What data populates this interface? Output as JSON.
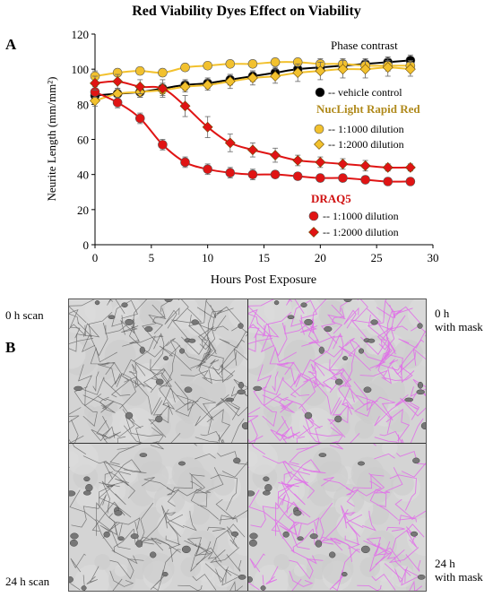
{
  "figure": {
    "title": "Red Viability Dyes Effect on Viability",
    "panel_a_label": "A",
    "panel_b_label": "B"
  },
  "chart_data": {
    "type": "line",
    "xlabel": "Hours Post Exposure",
    "ylabel": "Neurite Length (mm/mm²)",
    "xlim": [
      0,
      30
    ],
    "ylim": [
      0,
      120
    ],
    "xticks": [
      0,
      5,
      10,
      15,
      20,
      25,
      30
    ],
    "yticks": [
      0,
      20,
      40,
      60,
      80,
      100,
      120
    ],
    "grid": false,
    "x": [
      0,
      2,
      4,
      6,
      8,
      10,
      12,
      14,
      16,
      18,
      20,
      22,
      24,
      26,
      28
    ],
    "legend": {
      "phase_title": "Phase contrast",
      "nuclight_title": "NucLight Rapid Red",
      "draq5_title": "DRAQ5",
      "vehicle_label": "-- vehicle control",
      "dil1000_label": "-- 1:1000 dilution",
      "dil2000_label": "-- 1:2000 dilution"
    },
    "series": [
      {
        "name": "vehicle control",
        "group": "Phase contrast",
        "color": "#000000",
        "marker": "circle",
        "values": [
          85,
          86,
          87,
          89,
          91,
          92,
          94,
          96,
          98,
          100,
          101,
          102,
          103,
          104,
          105
        ],
        "errors": [
          3,
          3,
          3,
          3,
          3,
          3,
          3,
          3,
          3,
          3,
          3,
          3,
          3,
          3,
          3
        ]
      },
      {
        "name": "1:1000 dilution",
        "group": "NucLight Rapid Red",
        "color": "#f2c12e",
        "marker": "circle",
        "values": [
          96,
          98,
          99,
          98,
          101,
          102,
          103,
          103,
          104,
          104,
          103,
          103,
          102,
          102,
          102
        ],
        "errors": [
          3,
          2,
          2,
          2,
          2,
          2,
          2,
          2,
          2,
          2,
          3,
          3,
          3,
          3,
          3
        ]
      },
      {
        "name": "1:2000 dilution",
        "group": "NucLight Rapid Red",
        "color": "#f2c12e",
        "marker": "diamond",
        "values": [
          82,
          86,
          87,
          88,
          90,
          91,
          93,
          95,
          96,
          98,
          99,
          100,
          100,
          101,
          100
        ],
        "errors": [
          3,
          3,
          3,
          3,
          3,
          3,
          4,
          4,
          4,
          5,
          5,
          5,
          5,
          5,
          4
        ]
      },
      {
        "name": "1:1000 dilution",
        "group": "DRAQ5",
        "color": "#e01414",
        "marker": "circle",
        "values": [
          87,
          81,
          72,
          57,
          47,
          43,
          41,
          40,
          40,
          39,
          38,
          38,
          37,
          36,
          36
        ],
        "errors": [
          3,
          3,
          3,
          3,
          3,
          3,
          3,
          3,
          2,
          2,
          2,
          2,
          2,
          2,
          2
        ]
      },
      {
        "name": "1:2000 dilution",
        "group": "DRAQ5",
        "color": "#e01414",
        "marker": "diamond",
        "values": [
          92,
          93,
          90,
          89,
          79,
          67,
          58,
          54,
          51,
          48,
          47,
          46,
          45,
          44,
          44
        ],
        "errors": [
          4,
          4,
          4,
          5,
          6,
          6,
          5,
          4,
          4,
          3,
          3,
          3,
          3,
          2,
          2
        ]
      }
    ]
  },
  "panel_b": {
    "label_0h_scan": "0 h scan",
    "label_0h_mask_1": "0 h",
    "label_0h_mask_2": "with mask",
    "label_24h_scan": "24 h scan",
    "label_24h_mask_1": "24 h",
    "label_24h_mask_2": "with mask",
    "mask_color": "#e070e8"
  }
}
